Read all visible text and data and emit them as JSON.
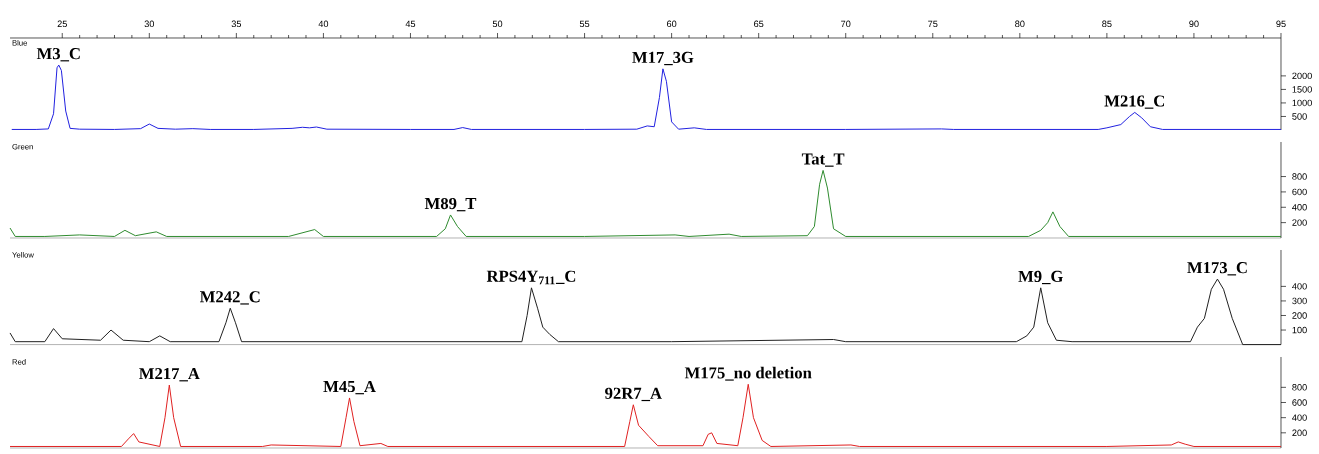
{
  "chart_data": [
    {
      "type": "line",
      "title": "Blue",
      "xlim": [
        22,
        95
      ],
      "ylim": [
        0,
        3400
      ],
      "xticks": [
        25,
        30,
        35,
        40,
        45,
        50,
        55,
        60,
        65,
        70,
        75,
        80,
        85,
        90,
        95
      ],
      "yticks": [
        500,
        1000,
        1500,
        2000
      ],
      "annotations": [
        {
          "text": "M3_C",
          "x": 24.8,
          "y": 2400
        },
        {
          "text": "M17_3G",
          "x": 59.5,
          "y": 2260
        },
        {
          "text": "M216_C",
          "x": 86.6,
          "y": 650
        }
      ],
      "series": [
        {
          "color": "#2020e0",
          "x": [
            22.1,
            23.5,
            24.2,
            24.5,
            24.7,
            24.8,
            24.95,
            25.2,
            25.45,
            26,
            28,
            29.5,
            30.0,
            30.5,
            31.5,
            32.5,
            33.5,
            36,
            38.2,
            38.8,
            39.2,
            39.6,
            40.2,
            45,
            47.5,
            48,
            48.5,
            55,
            58,
            58.6,
            59.0,
            59.3,
            59.5,
            59.7,
            60.0,
            60.4,
            61.3,
            62,
            70,
            75.5,
            76.2,
            84.5,
            85.0,
            85.8,
            86.3,
            86.6,
            87.0,
            87.5,
            88.2,
            95
          ],
          "values": [
            20,
            20,
            40,
            600,
            2300,
            2400,
            2200,
            700,
            60,
            30,
            20,
            50,
            220,
            60,
            30,
            50,
            20,
            20,
            60,
            100,
            80,
            110,
            30,
            20,
            20,
            90,
            20,
            20,
            30,
            150,
            120,
            1200,
            2260,
            1800,
            300,
            30,
            80,
            20,
            20,
            40,
            20,
            20,
            80,
            200,
            500,
            650,
            450,
            120,
            20,
            20
          ]
        }
      ]
    },
    {
      "type": "line",
      "title": "Green",
      "xlim": [
        22,
        95
      ],
      "ylim": [
        0,
        1250
      ],
      "yticks": [
        200,
        400,
        600,
        800
      ],
      "tick_labels": "y",
      "annotations": [
        {
          "text": "M89_T",
          "x": 47.3,
          "y": 300
        },
        {
          "text": "Tat_T",
          "x": 68.7,
          "y": 880
        }
      ],
      "series": [
        {
          "color": "#2e8b2e",
          "x": [
            22.0,
            22.3,
            24,
            26,
            28,
            28.6,
            29.2,
            30.4,
            31,
            32.5,
            38,
            39.5,
            40,
            46.5,
            47.0,
            47.3,
            47.7,
            48.2,
            55,
            60.2,
            61,
            63.3,
            64,
            67.8,
            68.2,
            68.5,
            68.7,
            68.95,
            69.3,
            70,
            80.5,
            81.2,
            81.6,
            81.9,
            82.3,
            82.8,
            88,
            95
          ],
          "values": [
            130,
            20,
            20,
            40,
            20,
            100,
            30,
            80,
            20,
            20,
            20,
            110,
            20,
            20,
            120,
            300,
            150,
            20,
            20,
            40,
            20,
            50,
            20,
            30,
            150,
            700,
            880,
            650,
            120,
            20,
            20,
            100,
            200,
            340,
            150,
            20,
            20,
            20
          ]
        }
      ]
    },
    {
      "type": "line",
      "title": "Yellow",
      "xlim": [
        22,
        95
      ],
      "ylim": [
        0,
        650
      ],
      "yticks": [
        100,
        200,
        300,
        400
      ],
      "tick_labels": "y",
      "annotations": [
        {
          "text": "M242_C",
          "x": 34.65,
          "y": 250
        },
        {
          "text": "RPS4Y$_{711}$_C",
          "x": 51.95,
          "y": 390
        },
        {
          "text": "M9_G",
          "x": 81.2,
          "y": 390
        },
        {
          "text": "M173_C",
          "x": 91.35,
          "y": 450
        }
      ],
      "series": [
        {
          "color": "#202020",
          "x": [
            22.0,
            22.3,
            24,
            24.5,
            25.0,
            27.2,
            27.8,
            28.5,
            30.0,
            30.6,
            31.2,
            34.0,
            34.4,
            34.65,
            34.95,
            35.3,
            45,
            51.4,
            51.7,
            51.95,
            52.3,
            52.6,
            53.0,
            53.5,
            60,
            69.3,
            70,
            79.8,
            80.4,
            80.8,
            81.2,
            81.6,
            82.1,
            83,
            89.8,
            90.2,
            90.6,
            91.0,
            91.35,
            91.7,
            92.2,
            92.8,
            95
          ],
          "values": [
            80,
            20,
            20,
            110,
            40,
            30,
            100,
            30,
            20,
            60,
            20,
            20,
            150,
            250,
            150,
            20,
            20,
            20,
            200,
            390,
            250,
            120,
            70,
            20,
            20,
            35,
            20,
            20,
            60,
            120,
            390,
            150,
            30,
            20,
            20,
            120,
            180,
            380,
            450,
            380,
            180,
            0,
            0
          ]
        }
      ]
    },
    {
      "type": "line",
      "title": "Red",
      "xlim": [
        22,
        95
      ],
      "ylim": [
        0,
        1200
      ],
      "yticks": [
        200,
        400,
        600,
        800
      ],
      "tick_labels": "y",
      "annotations": [
        {
          "text": "M217_A",
          "x": 31.15,
          "y": 830
        },
        {
          "text": "M45_A",
          "x": 41.5,
          "y": 660
        },
        {
          "text": "92R7_A",
          "x": 57.8,
          "y": 570
        },
        {
          "text": "M175_no deletion",
          "x": 64.4,
          "y": 840
        }
      ],
      "series": [
        {
          "color": "#e02020",
          "x": [
            22.0,
            28.4,
            28.8,
            29.1,
            29.4,
            30.6,
            30.9,
            31.15,
            31.4,
            31.8,
            36.5,
            37,
            41.0,
            41.3,
            41.5,
            41.75,
            42.1,
            43.3,
            43.7,
            57.3,
            57.6,
            57.8,
            58.1,
            58.7,
            59.2,
            61.8,
            62.1,
            62.3,
            62.6,
            63.8,
            64.1,
            64.4,
            64.7,
            65.2,
            65.7,
            70.3,
            70.8,
            85,
            88.7,
            89.1,
            89.5,
            90,
            95
          ],
          "values": [
            20,
            20,
            120,
            190,
            80,
            20,
            400,
            830,
            400,
            20,
            20,
            40,
            20,
            400,
            660,
            350,
            30,
            60,
            20,
            20,
            350,
            570,
            300,
            150,
            30,
            30,
            180,
            200,
            60,
            30,
            400,
            840,
            400,
            100,
            20,
            40,
            20,
            20,
            40,
            80,
            50,
            20,
            20
          ]
        }
      ]
    }
  ]
}
